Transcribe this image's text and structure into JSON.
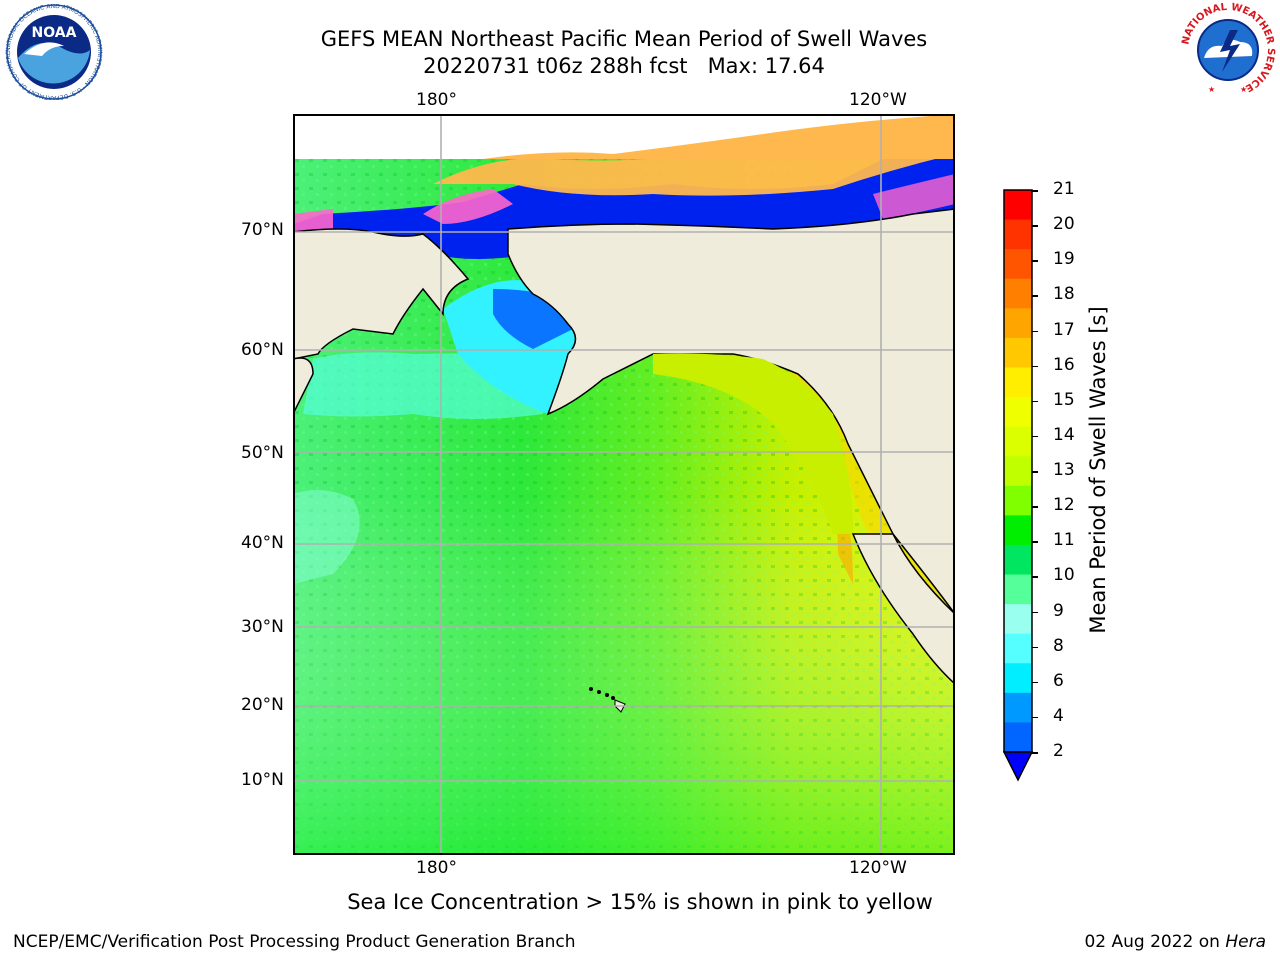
{
  "title": {
    "line1": "GEFS MEAN Northeast Pacific Mean Period of Swell Waves",
    "line2": "20220731 t06z 288h fcst   Max: 17.64"
  },
  "map": {
    "top_lon_labels": [
      "180°",
      "120°W"
    ],
    "bottom_lon_labels": [
      "180°",
      "120°W"
    ],
    "lat_labels": [
      "70°N",
      "60°N",
      "50°N",
      "40°N",
      "30°N",
      "20°N",
      "10°N"
    ],
    "colors": {
      "land": "#efecdc",
      "coast": "#000000",
      "grid": "#b0b0b0"
    }
  },
  "colorbar": {
    "label": "Mean Period of Swell Waves [s]",
    "ticks": [
      "21",
      "20",
      "19",
      "18",
      "17",
      "16",
      "15",
      "14",
      "13",
      "12",
      "11",
      "10",
      "9",
      "8",
      "6",
      "4",
      "2"
    ],
    "colors_top_to_bottom": [
      "#ff0000",
      "#ff3300",
      "#ff5500",
      "#ff7f00",
      "#ffa500",
      "#ffc800",
      "#ffee00",
      "#f0ff00",
      "#dcff00",
      "#c0ff00",
      "#80ff00",
      "#00ee00",
      "#00e660",
      "#55ff99",
      "#99ffee",
      "#55ffff",
      "#00eeff",
      "#0099ff",
      "#0066ff",
      "#0000ff"
    ]
  },
  "footer": {
    "note": "Sea Ice Concentration > 15% is shown in pink to yellow",
    "left": "NCEP/EMC/Verification Post Processing Product Generation Branch",
    "right_date": "02 Aug 2022 on ",
    "right_host": "Hera"
  },
  "logos": {
    "noaa_text": "NOAA",
    "noaa_ring_text": "NATIONAL OCEANIC AND ATMOSPHERIC ADMINISTRATION · U.S. DEPARTMENT OF COMMERCE",
    "nws_ring_text": "NATIONAL WEATHER SERVICE"
  }
}
